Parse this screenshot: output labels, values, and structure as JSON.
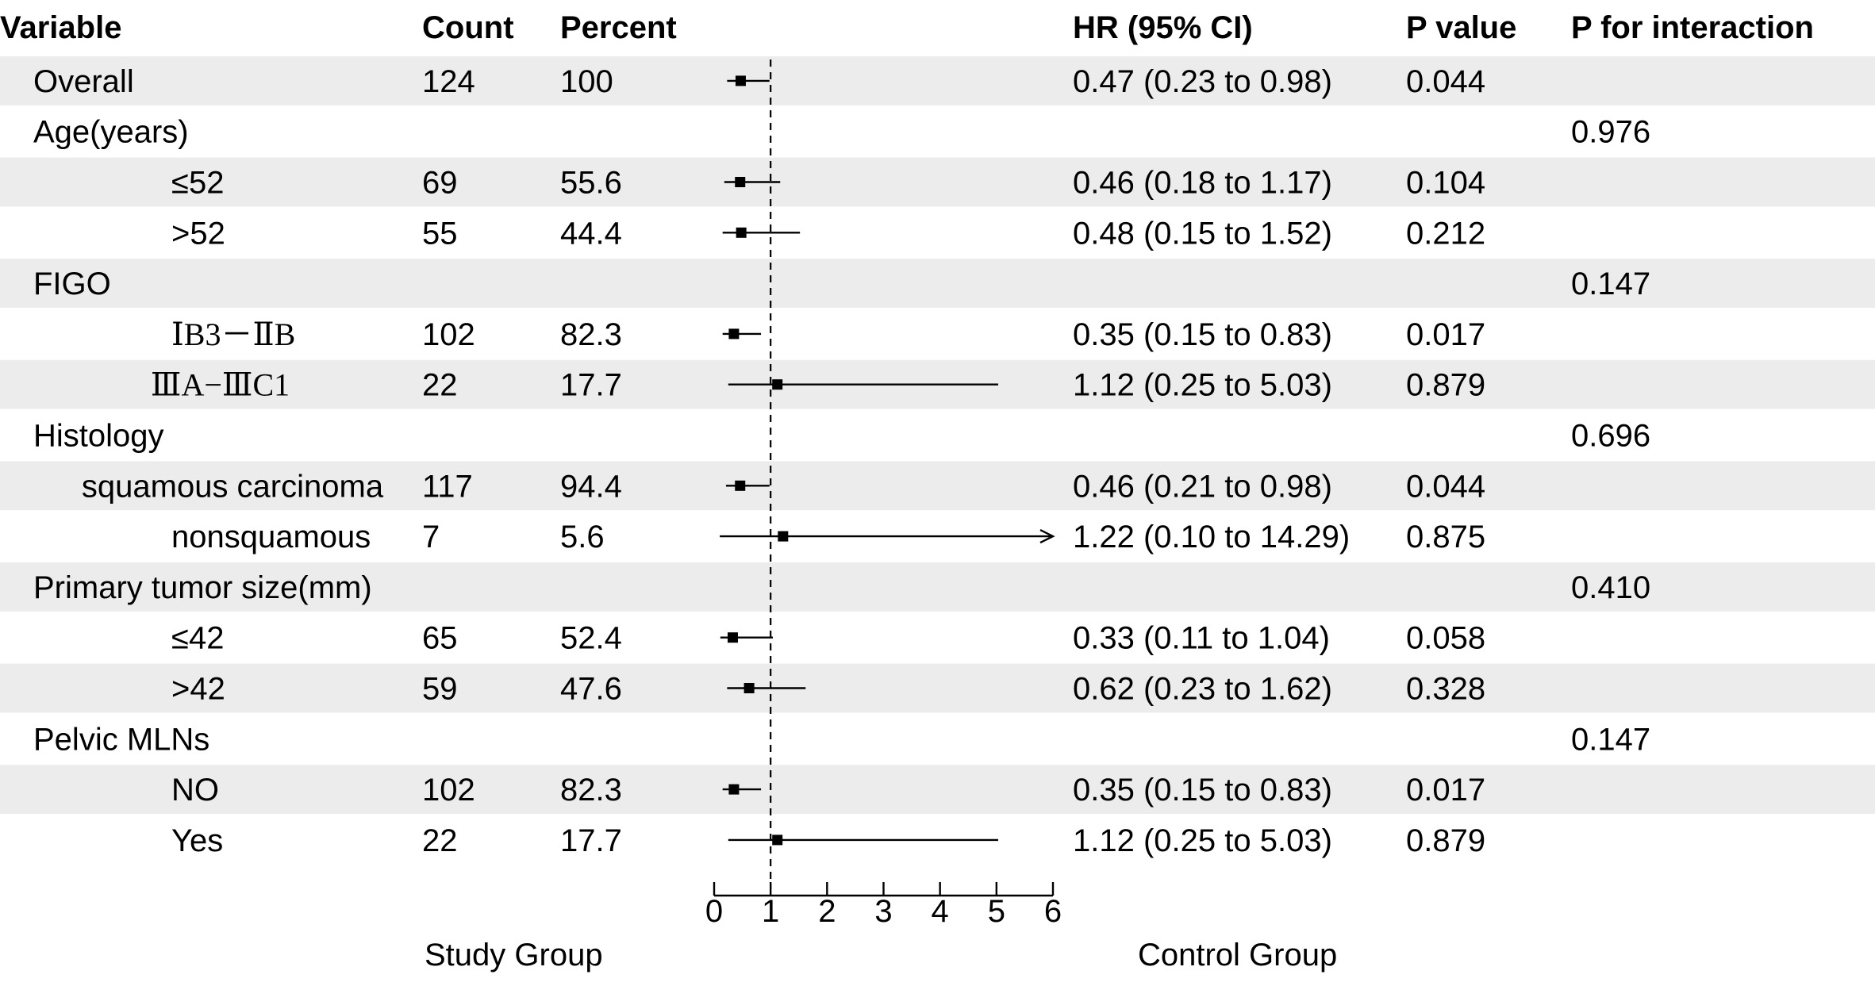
{
  "chart_data": {
    "type": "forest",
    "headers": {
      "variable": "Variable",
      "count": "Count",
      "percent": "Percent",
      "hr": "HR (95% CI)",
      "p": "P value",
      "p_interaction": "P for interaction"
    },
    "rows": [
      {
        "label": "Overall",
        "indent": 0,
        "count": "124",
        "percent": "100",
        "hr_text": "0.47 (0.23 to 0.98)",
        "p": "0.044",
        "p_int": "",
        "hr": 0.47,
        "lower": 0.23,
        "upper": 0.98,
        "shaded": true
      },
      {
        "label": "Age(years)",
        "indent": 0,
        "count": "",
        "percent": "",
        "hr_text": "",
        "p": "",
        "p_int": "0.976",
        "shaded": false
      },
      {
        "label": "≤52",
        "indent": 2,
        "count": "69",
        "percent": "55.6",
        "hr_text": "0.46 (0.18 to 1.17)",
        "p": "0.104",
        "p_int": "",
        "hr": 0.46,
        "lower": 0.18,
        "upper": 1.17,
        "shaded": true
      },
      {
        "label": ">52",
        "indent": 2,
        "count": "55",
        "percent": "44.4",
        "hr_text": "0.48 (0.15 to 1.52)",
        "p": "0.212",
        "p_int": "",
        "hr": 0.48,
        "lower": 0.15,
        "upper": 1.52,
        "shaded": false
      },
      {
        "label": "FIGO",
        "indent": 0,
        "count": "",
        "percent": "",
        "hr_text": "",
        "p": "",
        "p_int": "0.147",
        "shaded": true
      },
      {
        "label": "ⅠB3－ⅡB",
        "indent": 2,
        "roman": true,
        "count": "102",
        "percent": "82.3",
        "hr_text": "0.35 (0.15 to 0.83)",
        "p": "0.017",
        "p_int": "",
        "hr": 0.35,
        "lower": 0.15,
        "upper": 0.83,
        "shaded": false
      },
      {
        "label": "ⅢA−ⅢC1",
        "indent": 1.7,
        "roman": true,
        "count": "22",
        "percent": "17.7",
        "hr_text": "1.12 (0.25 to 5.03)",
        "p": "0.879",
        "p_int": "",
        "hr": 1.12,
        "lower": 0.25,
        "upper": 5.03,
        "shaded": true
      },
      {
        "label": "Histology",
        "indent": 0,
        "count": "",
        "percent": "",
        "hr_text": "",
        "p": "",
        "p_int": "0.696",
        "shaded": false
      },
      {
        "label": "squamous carcinoma",
        "indent": 0.7,
        "count": "117",
        "percent": "94.4",
        "hr_text": "0.46 (0.21 to 0.98)",
        "p": "0.044",
        "p_int": "",
        "hr": 0.46,
        "lower": 0.21,
        "upper": 0.98,
        "shaded": true
      },
      {
        "label": "nonsquamous",
        "indent": 2,
        "count": "7",
        "percent": "5.6",
        "hr_text": "1.22 (0.10 to 14.29)",
        "p": "0.875",
        "p_int": "",
        "hr": 1.22,
        "lower": 0.1,
        "upper": 14.29,
        "arrow": true,
        "shaded": false
      },
      {
        "label": "Primary tumor size(mm)",
        "indent": 0,
        "count": "",
        "percent": "",
        "hr_text": "",
        "p": "",
        "p_int": "0.410",
        "shaded": true
      },
      {
        "label": "≤42",
        "indent": 2,
        "count": "65",
        "percent": "52.4",
        "hr_text": "0.33 (0.11 to 1.04)",
        "p": "0.058",
        "p_int": "",
        "hr": 0.33,
        "lower": 0.11,
        "upper": 1.04,
        "shaded": false
      },
      {
        "label": ">42",
        "indent": 2,
        "count": "59",
        "percent": "47.6",
        "hr_text": "0.62 (0.23 to 1.62)",
        "p": "0.328",
        "p_int": "",
        "hr": 0.62,
        "lower": 0.23,
        "upper": 1.62,
        "shaded": true
      },
      {
        "label": "Pelvic MLNs",
        "indent": 0,
        "count": "",
        "percent": "",
        "hr_text": "",
        "p": "",
        "p_int": "0.147",
        "shaded": false
      },
      {
        "label": "NO",
        "indent": 2,
        "count": "102",
        "percent": "82.3",
        "hr_text": "0.35 (0.15 to 0.83)",
        "p": "0.017",
        "p_int": "",
        "hr": 0.35,
        "lower": 0.15,
        "upper": 0.83,
        "shaded": true
      },
      {
        "label": "Yes",
        "indent": 2,
        "count": "22",
        "percent": "17.7",
        "hr_text": "1.12 (0.25 to 5.03)",
        "p": "0.879",
        "p_int": "",
        "hr": 1.12,
        "lower": 0.25,
        "upper": 5.03,
        "shaded": false
      }
    ],
    "x_axis": {
      "range": [
        0,
        6
      ],
      "ticks": [
        0,
        1,
        2,
        3,
        4,
        5,
        6
      ],
      "reference_line": 1
    },
    "group_labels": {
      "left": "Study Group",
      "right": "Control Group"
    }
  },
  "colors": {
    "shade": "#ececec",
    "ink": "#000000"
  }
}
